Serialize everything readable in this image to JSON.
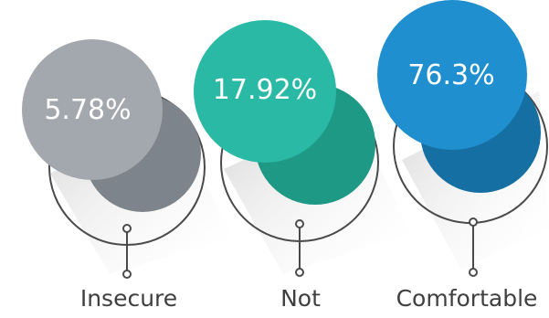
{
  "chart_data": {
    "type": "pie",
    "title": "",
    "categories": [
      "Insecure",
      "Not",
      "Comfortable"
    ],
    "values": [
      5.78,
      17.92,
      76.3
    ],
    "value_labels": [
      "5.78%",
      "17.92%",
      "76.3%"
    ],
    "colors": {
      "Insecure": {
        "light": "#a3a8ae",
        "dark": "#7e848b"
      },
      "Not": {
        "light": "#29b9a4",
        "dark": "#1d9986"
      },
      "Comfortable": {
        "light": "#1f8fcf",
        "dark": "#156fa3"
      }
    }
  }
}
